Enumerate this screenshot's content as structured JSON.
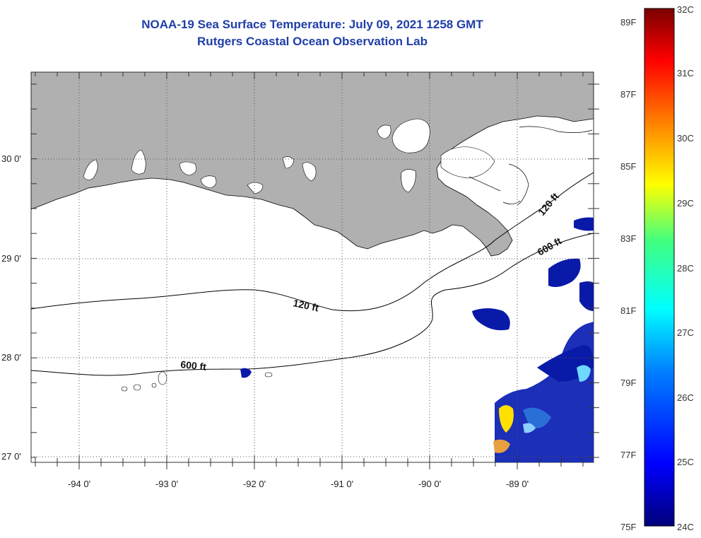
{
  "title": {
    "line1": "NOAA-19 Sea Surface Temperature:  July 09, 2021 1258 GMT",
    "line2": "Rutgers Coastal Ocean Observation Lab"
  },
  "axes": {
    "lon_labels": [
      "-94 0'",
      "-93 0'",
      "-92 0'",
      "-91 0'",
      "-90 0'",
      "-89 0'"
    ],
    "lat_labels": [
      "30 0'",
      "29 0'",
      "28 0'",
      "27 0'"
    ]
  },
  "contours": [
    {
      "label": "120 ft"
    },
    {
      "label": "600 ft"
    },
    {
      "label": "120 ft"
    },
    {
      "label": "600 ft"
    }
  ],
  "colorbar": {
    "celsius": [
      "32C",
      "31C",
      "30C",
      "29C",
      "28C",
      "27C",
      "26C",
      "25C",
      "24C"
    ],
    "fahrenheit": [
      "89F",
      "87F",
      "85F",
      "83F",
      "81F",
      "79F",
      "77F",
      "75F"
    ]
  },
  "colors": {
    "land": "#b0b0b0",
    "water": "#ffffff",
    "title": "#1f3ea8",
    "sst_cold": "#0a1aa8",
    "sst_warm": "#ffe000"
  }
}
